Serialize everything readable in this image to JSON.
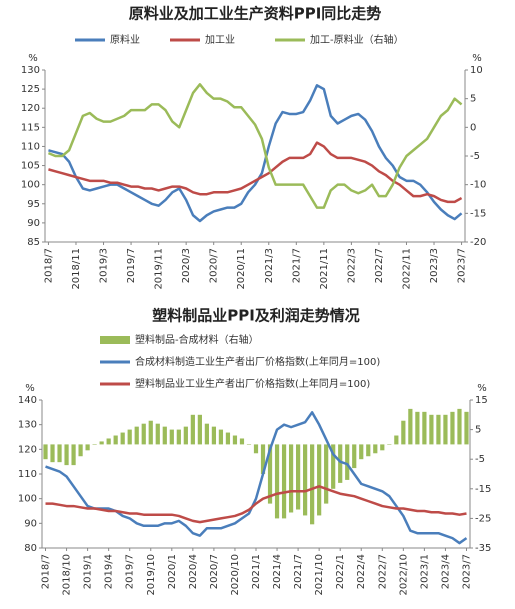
{
  "chart_data": [
    {
      "type": "line",
      "title": "原料业及加工业生产资料PPI同比走势",
      "ylabel": "%",
      "y2label": "%",
      "categories": [
        "2018/7",
        null,
        null,
        null,
        "2018/11",
        null,
        null,
        null,
        "2019/3",
        null,
        null,
        null,
        "2019/7",
        null,
        null,
        null,
        "2019/11",
        null,
        null,
        null,
        "2020/3",
        null,
        null,
        null,
        "2020/7",
        null,
        null,
        null,
        "2020/11",
        null,
        null,
        null,
        "2021/3",
        null,
        null,
        null,
        "2021/7",
        null,
        null,
        null,
        "2021/11",
        null,
        null,
        null,
        "2022/3",
        null,
        null,
        null,
        "2022/7",
        null,
        null,
        null,
        "2022/11",
        null,
        null,
        null,
        "2023/3",
        null,
        null,
        null,
        "2023/7"
      ],
      "ylim": [
        85,
        130
      ],
      "yticks": [
        85,
        90,
        95,
        100,
        105,
        110,
        115,
        120,
        125,
        130
      ],
      "y2lim": [
        -20,
        10
      ],
      "y2ticks": [
        -20,
        -15,
        -10,
        -5,
        0,
        5,
        10
      ],
      "series": [
        {
          "name": "原料业",
          "color": "#4a7ebb",
          "values": [
            109,
            108.5,
            108,
            106,
            102,
            99,
            98.5,
            99,
            99.5,
            100,
            100,
            99,
            98,
            97,
            96,
            95,
            94.5,
            96,
            98,
            99,
            96,
            92,
            90.5,
            92,
            93,
            93.5,
            94,
            94,
            95,
            98,
            100,
            103,
            110,
            116,
            119,
            118.5,
            118.5,
            119,
            122,
            126,
            125,
            118,
            116,
            117,
            118,
            118.5,
            117,
            114,
            110,
            107,
            105,
            102,
            101,
            101,
            100,
            98,
            95.5,
            93.5,
            92,
            91,
            92.5
          ]
        },
        {
          "name": "加工业",
          "color": "#be4b48",
          "values": [
            104,
            103.5,
            103,
            102.5,
            102,
            101.5,
            101,
            101,
            101,
            100.5,
            100.5,
            100,
            99.5,
            99.5,
            99,
            99,
            98.5,
            99,
            99.5,
            99.5,
            99,
            98,
            97.5,
            97.5,
            98,
            98,
            98,
            98.5,
            99,
            100,
            101,
            102,
            103,
            104.5,
            106,
            107,
            107,
            107,
            108,
            111,
            110,
            108,
            107,
            107,
            107,
            106.5,
            106,
            105,
            103.5,
            102.5,
            101,
            100,
            98.5,
            97,
            97,
            97.5,
            97,
            96,
            95.5,
            95.5,
            96.5
          ]
        },
        {
          "name": "加工-原料业（右轴）",
          "color": "#9bbb59",
          "axis": "y2",
          "values": [
            -4.5,
            -5,
            -5,
            -4,
            -1,
            2,
            2.5,
            1.5,
            1,
            1,
            1.5,
            2,
            3,
            3,
            3,
            4,
            4,
            3,
            1,
            0,
            3,
            6,
            7.5,
            6,
            5,
            5,
            4.5,
            3.5,
            3.5,
            2,
            0.5,
            -2,
            -7,
            -10,
            -10,
            -10,
            -10,
            -10,
            -12,
            -14,
            -14,
            -11,
            -10,
            -10,
            -11,
            -11.5,
            -11,
            -10,
            -12,
            -12,
            -10,
            -7,
            -5,
            -4,
            -3,
            -2,
            0,
            2,
            3,
            5,
            4
          ]
        }
      ]
    },
    {
      "type": "line",
      "title": "塑料制品业PPI及利润走势情况",
      "ylabel": "%",
      "y2label": "%",
      "categories": [
        "2018/7",
        null,
        null,
        "2018/10",
        null,
        null,
        "2019/1",
        null,
        null,
        "2019/4",
        null,
        null,
        "2019/7",
        null,
        null,
        "2019/10",
        null,
        null,
        "2020/1",
        null,
        null,
        "2020/4",
        null,
        null,
        "2020/7",
        null,
        null,
        "2020/10",
        null,
        null,
        "2021/1",
        null,
        null,
        "2021/4",
        null,
        null,
        "2021/7",
        null,
        null,
        "2021/10",
        null,
        null,
        "2022/1",
        null,
        null,
        "2022/4",
        null,
        null,
        "2022/7",
        null,
        null,
        "2022/10",
        null,
        null,
        "2023/1",
        null,
        null,
        "2023/4",
        null,
        null,
        "2023/7"
      ],
      "ylim": [
        80,
        140
      ],
      "yticks": [
        80,
        90,
        100,
        110,
        120,
        130,
        140
      ],
      "y2lim": [
        -35,
        15
      ],
      "y2ticks": [
        -35,
        -25,
        -15,
        -5,
        5,
        15
      ],
      "series": [
        {
          "name": "塑料制品-合成材料（右轴）",
          "color": "#9bbb59",
          "axis": "y2",
          "type": "bar",
          "values": [
            -5,
            -6,
            -6,
            -7,
            -7,
            -4,
            -2,
            0,
            1,
            2,
            3,
            4,
            5,
            6,
            7,
            8,
            7,
            6,
            5,
            5,
            6,
            10,
            10,
            7,
            6,
            5,
            4,
            3,
            2,
            0,
            -3,
            -10,
            -20,
            -25,
            -25,
            -23,
            -22,
            -24,
            -27,
            -24,
            -20,
            -15,
            -13,
            -12,
            -8,
            -5,
            -4,
            -3,
            -2,
            0,
            3,
            8,
            12,
            11,
            11,
            10,
            10,
            10,
            11,
            12,
            11
          ]
        },
        {
          "name": "合成材料制造工业生产者出厂价格指数(上年同月=100)",
          "color": "#4a7ebb",
          "values": [
            113,
            112,
            111,
            109,
            105,
            101,
            97,
            96,
            96,
            96,
            95,
            93,
            92,
            90,
            89,
            89,
            89,
            90,
            90,
            91,
            89,
            86,
            85,
            88,
            88,
            88,
            89,
            90,
            92,
            94,
            100,
            110,
            120,
            128,
            130,
            129,
            130,
            131,
            135,
            130,
            124,
            118,
            115,
            114,
            110,
            106,
            105,
            104,
            103,
            101,
            97,
            93,
            87,
            86,
            86,
            86,
            86,
            85,
            84,
            82,
            84
          ]
        },
        {
          "name": "塑料制品业工业生产者出厂价格指数(上年同月=100)",
          "color": "#be4b48",
          "values": [
            98,
            98,
            97.5,
            97,
            97,
            96.5,
            96,
            96,
            95.5,
            95,
            95,
            94.5,
            94,
            94,
            93.5,
            93.5,
            93.5,
            93.5,
            93.5,
            93,
            92,
            91,
            90.5,
            91,
            91.5,
            92,
            92.5,
            93,
            94,
            95.5,
            98,
            100,
            101,
            102,
            102.5,
            103,
            103,
            103,
            104,
            105,
            104,
            103,
            102,
            101.5,
            101,
            100,
            99,
            98,
            97,
            96.5,
            96,
            96,
            95.5,
            95,
            95,
            94.5,
            94.5,
            94,
            94,
            93.5,
            94
          ]
        }
      ]
    }
  ]
}
